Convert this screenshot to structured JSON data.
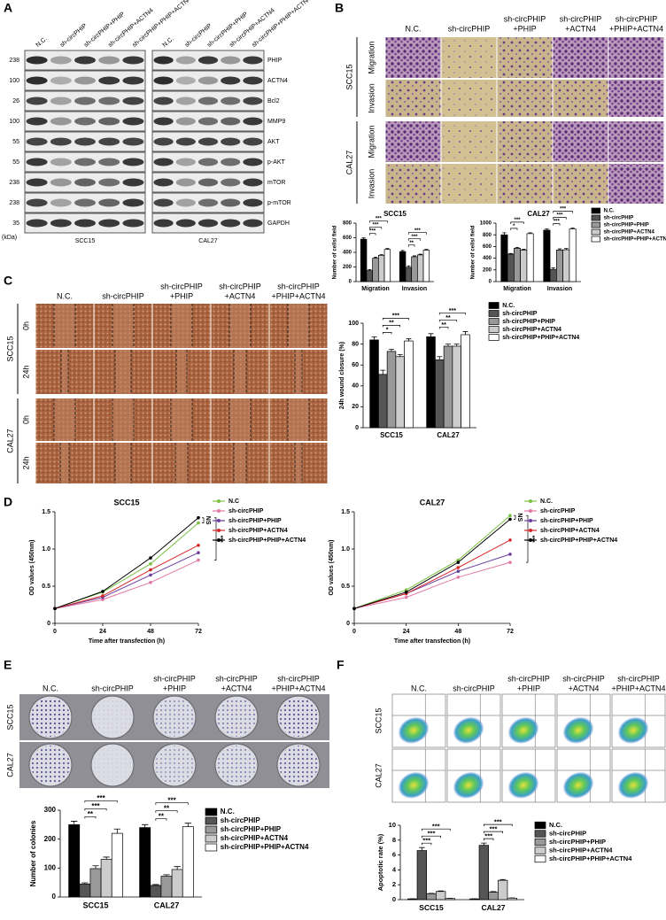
{
  "figure": {
    "labels": [
      "A",
      "B",
      "C",
      "D",
      "E",
      "F"
    ],
    "a": {
      "lanes": [
        "N.C.",
        "sh-circPHIP",
        "sh-circPHIP+PHIP",
        "sh-circPHIP+ACTN4",
        "sh-circPHIP+PHIP+ACTN4"
      ],
      "markers": [
        "238",
        "100",
        "26",
        "100",
        "55",
        "55",
        "238",
        "238",
        "35"
      ],
      "kda_unit": "(kDa)",
      "proteins": [
        "PHIP",
        "ACTN4",
        "Bcl2",
        "MMP9",
        "AKT",
        "p-AKT",
        "mTOR",
        "p-mTOR",
        "GAPDH"
      ],
      "cell_lines": [
        "SCC15",
        "CAL27"
      ]
    },
    "b": {
      "headers": [
        [
          "N.C."
        ],
        [
          "sh-circPHIP"
        ],
        [
          "sh-circPHIP",
          "+PHIP"
        ],
        [
          "sh-circPHIP",
          "+ACTN4"
        ],
        [
          "sh-circPHIP",
          "+PHIP+ACTN4"
        ]
      ],
      "rows": [
        {
          "cell_line": "SCC15",
          "assays": [
            "Migration",
            "Invasion"
          ]
        },
        {
          "cell_line": "CAL27",
          "assays": [
            "Migration",
            "Invasion"
          ]
        }
      ]
    },
    "c": {
      "headers": [
        [
          "N.C."
        ],
        [
          "sh-circPHIP"
        ],
        [
          "sh-circPHIP",
          "+PHIP"
        ],
        [
          "sh-circPHIP",
          "+ACTN4"
        ],
        [
          "sh-circPHIP",
          "+PHIP+ACTN4"
        ]
      ],
      "rows": [
        {
          "cell_line": "SCC15",
          "times": [
            "0h",
            "24h"
          ]
        },
        {
          "cell_line": "CAL27",
          "times": [
            "0h",
            "24h"
          ]
        }
      ]
    },
    "e": {
      "headers": [
        [
          "N.C."
        ],
        [
          "sh-circPHIP"
        ],
        [
          "sh-circPHIP",
          "+PHIP"
        ],
        [
          "sh-circPHIP",
          "+ACTN4"
        ],
        [
          "sh-circPHIP",
          "+PHIP+ACTN4"
        ]
      ],
      "rows": [
        "SCC15",
        "CAL27"
      ]
    },
    "f": {
      "headers": [
        [
          "N.C."
        ],
        [
          "sh-circPHIP"
        ],
        [
          "sh-circPHIP",
          "+PHIP"
        ],
        [
          "sh-circPHIP",
          "+ACTN4"
        ],
        [
          "sh-circPHIP",
          "+PHIP+ACTN4"
        ]
      ],
      "rows": [
        "SCC15",
        "CAL27"
      ]
    }
  },
  "chart_data": [
    {
      "type": "bar",
      "title": "SCC15",
      "ylabel": "Number of cells/ field",
      "categories": [
        "Migration",
        "Invasion"
      ],
      "ylim": [
        0,
        800
      ],
      "yticks": [
        0,
        200,
        400,
        600,
        800
      ],
      "series": [
        {
          "color": "#000000",
          "values": [
            580,
            410
          ],
          "errors": [
            18,
            15
          ]
        },
        {
          "color": "#555555",
          "values": [
            150,
            195
          ],
          "errors": [
            15,
            20
          ]
        },
        {
          "color": "#999999",
          "values": [
            320,
            340
          ],
          "errors": [
            15,
            12
          ]
        },
        {
          "color": "#cccccc",
          "values": [
            360,
            365
          ],
          "errors": [
            10,
            10
          ]
        },
        {
          "color": "#ffffff",
          "values": [
            440,
            430
          ],
          "errors": [
            12,
            10
          ]
        }
      ],
      "significance": [
        [
          "***",
          "***",
          "***"
        ],
        [
          "**",
          "***",
          "***"
        ]
      ]
    },
    {
      "type": "bar",
      "title": "CAL27",
      "ylabel": "Number of cells/ field",
      "categories": [
        "Migration",
        "Invasion"
      ],
      "ylim": [
        0,
        1000
      ],
      "yticks": [
        0,
        200,
        400,
        600,
        800,
        1000
      ],
      "series": [
        {
          "name": "N.C.",
          "color": "#000000",
          "values": [
            800,
            880
          ],
          "errors": [
            35,
            20
          ]
        },
        {
          "name": "sh-circPHIP",
          "color": "#555555",
          "values": [
            470,
            210
          ],
          "errors": [
            10,
            25
          ]
        },
        {
          "name": "sh-circPHIP+PHIP",
          "color": "#999999",
          "values": [
            570,
            540
          ],
          "errors": [
            15,
            20
          ]
        },
        {
          "name": "sh-circPHIP+ACTN4",
          "color": "#cccccc",
          "values": [
            540,
            545
          ],
          "errors": [
            12,
            20
          ]
        },
        {
          "name": "sh-circPHIP+PHIP+ACTN4",
          "color": "#ffffff",
          "values": [
            820,
            900
          ],
          "errors": [
            15,
            15
          ]
        }
      ],
      "significance": [
        [
          "*",
          "***"
        ],
        [
          "***",
          "***",
          "***"
        ]
      ]
    },
    {
      "type": "bar",
      "ylabel": "24h wound closure (%)",
      "categories": [
        "SCC15",
        "CAL27"
      ],
      "ylim": [
        0,
        100
      ],
      "yticks": [
        0,
        20,
        40,
        60,
        80,
        100
      ],
      "series": [
        {
          "name": "N.C.",
          "color": "#000000",
          "values": [
            84,
            87
          ],
          "errors": [
            3,
            3
          ]
        },
        {
          "name": "sh-circPHIP",
          "color": "#555555",
          "values": [
            51,
            65
          ],
          "errors": [
            4,
            3
          ]
        },
        {
          "name": "sh-circPHIP+PHIP",
          "color": "#999999",
          "values": [
            73,
            78
          ],
          "errors": [
            2,
            2
          ]
        },
        {
          "name": "sh-circPHIP+ACTN4",
          "color": "#cccccc",
          "values": [
            68,
            78
          ],
          "errors": [
            2,
            2
          ]
        },
        {
          "name": "sh-circPHIP+PHIP+ACTN4",
          "color": "#ffffff",
          "values": [
            83,
            89
          ],
          "errors": [
            2,
            3
          ]
        }
      ],
      "significance": [
        [
          "*",
          "**",
          "***"
        ],
        [
          "**",
          "**",
          "***"
        ]
      ]
    },
    {
      "type": "line",
      "title": "SCC15",
      "xlabel": "Time after transfection (h)",
      "ylabel": "OD values (450nm)",
      "x": [
        0,
        24,
        48,
        72
      ],
      "xlim": [
        0,
        72
      ],
      "xticks": [
        0,
        24,
        48,
        72
      ],
      "ylim": [
        0,
        1.5
      ],
      "yticks": [
        0,
        0.5,
        {
          "value": 1,
          "label": "1.0"
        },
        1.5
      ],
      "series": [
        {
          "name": "N.C",
          "color": "#7ac143",
          "values": [
            0.2,
            0.42,
            0.8,
            1.35
          ]
        },
        {
          "name": "sh-circPHIP",
          "color": "#e377a6",
          "values": [
            0.2,
            0.32,
            0.55,
            0.85
          ]
        },
        {
          "name": "sh-circPHIP+PHIP",
          "color": "#6b3fa0",
          "values": [
            0.2,
            0.35,
            0.65,
            0.95
          ]
        },
        {
          "name": "sh-circPHIP+ACTN4",
          "color": "#d62728",
          "values": [
            0.2,
            0.37,
            0.72,
            1.05
          ]
        },
        {
          "name": "sh-circPHIP+PHIP+ACTN4",
          "color": "#000000",
          "values": [
            0.2,
            0.43,
            0.88,
            1.42
          ]
        }
      ],
      "annotations": [
        "NS",
        "***"
      ]
    },
    {
      "type": "line",
      "title": "CAL27",
      "xlabel": "Time after transfection (h)",
      "ylabel": "OD values (450nm)",
      "x": [
        0,
        24,
        48,
        72
      ],
      "xlim": [
        0,
        72
      ],
      "xticks": [
        0,
        24,
        48,
        72
      ],
      "ylim": [
        0,
        1.5
      ],
      "yticks": [
        0,
        0.5,
        {
          "value": 1,
          "label": "1.0"
        },
        1.5
      ],
      "series": [
        {
          "name": "N.C.",
          "color": "#7ac143",
          "values": [
            0.2,
            0.45,
            0.85,
            1.45
          ]
        },
        {
          "name": "sh-circPHIP",
          "color": "#e377a6",
          "values": [
            0.2,
            0.35,
            0.62,
            0.82
          ]
        },
        {
          "name": "sh-circPHIP+PHIP",
          "color": "#6b3fa0",
          "values": [
            0.2,
            0.4,
            0.7,
            0.93
          ]
        },
        {
          "name": "sh-circPHIP+ACTN4",
          "color": "#d62728",
          "values": [
            0.2,
            0.4,
            0.75,
            1.12
          ]
        },
        {
          "name": "sh-circPHIP+PHIP+ACTN4",
          "color": "#000000",
          "values": [
            0.2,
            0.42,
            0.82,
            1.4
          ]
        }
      ],
      "annotations": [
        "NS",
        "***"
      ]
    },
    {
      "type": "bar",
      "ylabel": "Number of colonies",
      "categories": [
        "SCC15",
        "CAL27"
      ],
      "ylim": [
        0,
        300
      ],
      "yticks": [
        0,
        100,
        200,
        300
      ],
      "series": [
        {
          "name": "N.C.",
          "color": "#000000",
          "values": [
            250,
            240
          ],
          "errors": [
            12,
            10
          ]
        },
        {
          "name": "sh-circPHIP",
          "color": "#555555",
          "values": [
            45,
            40
          ],
          "errors": [
            4,
            3
          ]
        },
        {
          "name": "sh-circPHIP+PHIP",
          "color": "#999999",
          "values": [
            98,
            72
          ],
          "errors": [
            10,
            5
          ]
        },
        {
          "name": "sh-circPHIP+ACTN4",
          "color": "#cccccc",
          "values": [
            130,
            95
          ],
          "errors": [
            8,
            10
          ]
        },
        {
          "name": "sh-circPHIP+PHIP+ACTN4",
          "color": "#ffffff",
          "values": [
            220,
            243
          ],
          "errors": [
            15,
            12
          ]
        }
      ],
      "significance": [
        [
          "**",
          "***",
          "***"
        ],
        [
          "**",
          "**",
          "***"
        ]
      ]
    },
    {
      "type": "bar",
      "ylabel": "Apoptotic rate (%)",
      "categories": [
        "SCC15",
        "CAL27"
      ],
      "ylim": [
        0,
        10
      ],
      "yticks": [
        0,
        2,
        4,
        6,
        8,
        10
      ],
      "series": [
        {
          "name": "N.C.",
          "color": "#000000",
          "values": [
            0.1,
            0.1
          ],
          "errors": [
            0.02,
            0.02
          ]
        },
        {
          "name": "sh-circPHIP",
          "color": "#555555",
          "values": [
            6.6,
            7.3
          ],
          "errors": [
            0.4,
            0.3
          ]
        },
        {
          "name": "sh-circPHIP+PHIP",
          "color": "#999999",
          "values": [
            0.8,
            1.0
          ],
          "errors": [
            0.05,
            0.08
          ]
        },
        {
          "name": "sh-circPHIP+ACTN4",
          "color": "#cccccc",
          "values": [
            1.1,
            2.6
          ],
          "errors": [
            0.08,
            0.1
          ]
        },
        {
          "name": "sh-circPHIP+PHIP+ACTN4",
          "color": "#ffffff",
          "values": [
            0.15,
            0.2
          ],
          "errors": [
            0.03,
            0.03
          ]
        }
      ],
      "significance": [
        [
          "***",
          "***",
          "***"
        ],
        [
          "***",
          "***",
          "***"
        ]
      ]
    }
  ]
}
